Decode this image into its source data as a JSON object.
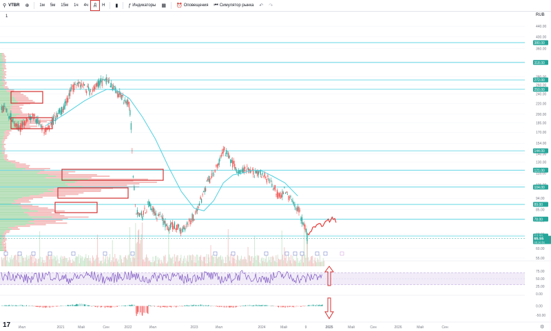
{
  "toolbar": {
    "symbol": "VTBR",
    "intervals": [
      "1м",
      "5м",
      "15м",
      "1ч",
      "4ч",
      "Д",
      "Н"
    ],
    "active_interval": "Д",
    "indicators_label": "Индикаторы",
    "alerts_label": "Оповещения",
    "replay_label": "Симулятор рынка"
  },
  "top_right_label": "RUB",
  "legend_text": "1",
  "colors": {
    "up": "#26a69a",
    "down": "#ef5350",
    "ma": "#4dd0e1",
    "level": "#4dd0e1",
    "rsi": "#7e57c2",
    "marker": "#d32f2f"
  },
  "chart_data": [
    {
      "type": "line",
      "name": "price",
      "x_labels": [
        "Июл",
        "2021",
        "Май",
        "Сен",
        "2022",
        "Июл",
        "2023",
        "Июл",
        "2024",
        "Май",
        "9",
        "2025",
        "Май",
        "Сен",
        "2026",
        "Май",
        "Сен"
      ],
      "y_axis_ticks": [
        440,
        400,
        360,
        320,
        280,
        260,
        240,
        220,
        200,
        185,
        170,
        154,
        140,
        130,
        118,
        106,
        94,
        85,
        77,
        68,
        60,
        55
      ],
      "y_axis_scale": "log",
      "levels": [
        380,
        318,
        272,
        250,
        144,
        121,
        104,
        89,
        78,
        67
      ],
      "level_labels": [
        "380.00",
        "318.00",
        "272.00",
        "250.00",
        "144.00",
        "121.00",
        "104.00",
        "89.00",
        "78.00",
        "67.00"
      ],
      "last_price": "65.55",
      "last_price_time": "05:10:51",
      "price_path": [
        [
          0,
          215
        ],
        [
          0.02,
          205
        ],
        [
          0.04,
          190
        ],
        [
          0.06,
          175
        ],
        [
          0.08,
          190
        ],
        [
          0.1,
          195
        ],
        [
          0.12,
          185
        ],
        [
          0.14,
          170
        ],
        [
          0.16,
          185
        ],
        [
          0.18,
          200
        ],
        [
          0.2,
          215
        ],
        [
          0.22,
          250
        ],
        [
          0.24,
          265
        ],
        [
          0.26,
          255
        ],
        [
          0.28,
          245
        ],
        [
          0.3,
          260
        ],
        [
          0.32,
          270
        ],
        [
          0.34,
          265
        ],
        [
          0.36,
          245
        ],
        [
          0.38,
          230
        ],
        [
          0.4,
          215
        ],
        [
          0.405,
          180
        ],
        [
          0.41,
          125
        ],
        [
          0.415,
          100
        ],
        [
          0.42,
          85
        ],
        [
          0.44,
          80
        ],
        [
          0.46,
          90
        ],
        [
          0.48,
          82
        ],
        [
          0.5,
          78
        ],
        [
          0.52,
          72
        ],
        [
          0.54,
          74
        ],
        [
          0.56,
          70
        ],
        [
          0.58,
          76
        ],
        [
          0.6,
          80
        ],
        [
          0.62,
          92
        ],
        [
          0.64,
          108
        ],
        [
          0.66,
          118
        ],
        [
          0.68,
          132
        ],
        [
          0.69,
          145
        ],
        [
          0.7,
          140
        ],
        [
          0.72,
          128
        ],
        [
          0.74,
          116
        ],
        [
          0.76,
          122
        ],
        [
          0.78,
          118
        ],
        [
          0.8,
          120
        ],
        [
          0.82,
          114
        ],
        [
          0.84,
          108
        ],
        [
          0.86,
          96
        ],
        [
          0.88,
          100
        ],
        [
          0.9,
          92
        ],
        [
          0.92,
          86
        ],
        [
          0.94,
          74
        ],
        [
          0.95,
          66
        ]
      ],
      "ma_path": [
        [
          0.14,
          180
        ],
        [
          0.2,
          200
        ],
        [
          0.26,
          225
        ],
        [
          0.3,
          240
        ],
        [
          0.33,
          250
        ],
        [
          0.36,
          248
        ],
        [
          0.4,
          230
        ],
        [
          0.44,
          195
        ],
        [
          0.48,
          160
        ],
        [
          0.52,
          125
        ],
        [
          0.56,
          100
        ],
        [
          0.6,
          86
        ],
        [
          0.63,
          84
        ],
        [
          0.66,
          92
        ],
        [
          0.69,
          108
        ],
        [
          0.72,
          116
        ],
        [
          0.75,
          118
        ],
        [
          0.78,
          121
        ],
        [
          0.81,
          120
        ],
        [
          0.84,
          115
        ],
        [
          0.88,
          108
        ],
        [
          0.92,
          96
        ]
      ],
      "forecast_path": [
        [
          0.95,
          68
        ],
        [
          0.97,
          72
        ],
        [
          0.99,
          74
        ],
        [
          1.01,
          76
        ],
        [
          1.03,
          79
        ],
        [
          1.04,
          75
        ]
      ]
    },
    {
      "type": "line",
      "name": "rsi",
      "y_axis_ticks": [
        75,
        50,
        25,
        0
      ],
      "ylim": [
        0,
        100
      ],
      "band": [
        30,
        70
      ]
    },
    {
      "type": "bar",
      "name": "oscillator",
      "y_axis_ticks": [
        0,
        -50
      ],
      "ylim": [
        -75,
        50
      ]
    }
  ]
}
